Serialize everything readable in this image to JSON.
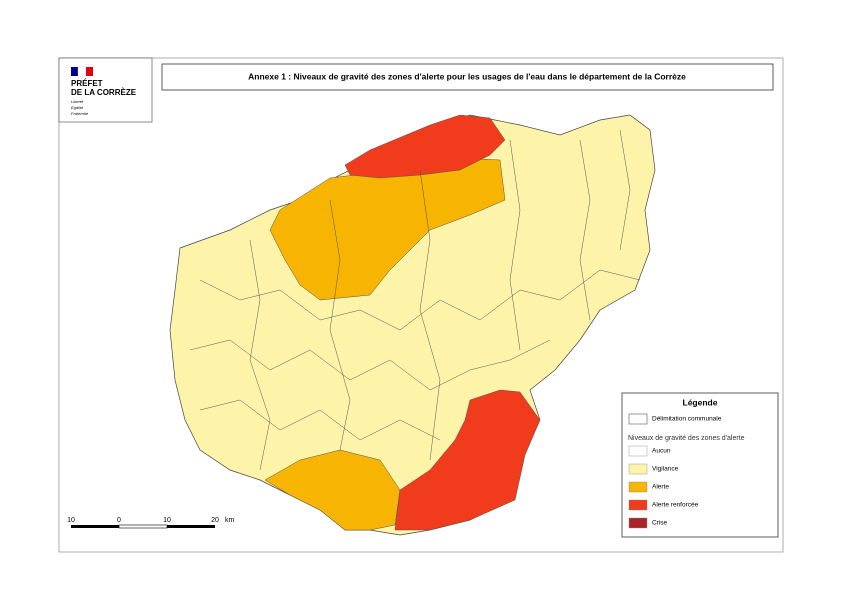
{
  "header": {
    "logo_lines": [
      "PRÉFET",
      "DE LA CORRÈZE"
    ],
    "motto": [
      "Liberté",
      "Égalité",
      "Fraternité"
    ],
    "title": "Annexe 1 : Niveaux de gravité des zones d'alerte pour les usages de l'eau dans le département de la Corrèze"
  },
  "legend": {
    "title": "Légende",
    "boundary": "Délimitation communale",
    "subtitle": "Niveaux de gravité des zones d'alerte",
    "items": [
      {
        "name": "Aucun",
        "color": "#ffffff"
      },
      {
        "name": "Vigilance",
        "color": "#fdf3a9"
      },
      {
        "name": "Alerte",
        "color": "#f7b400"
      },
      {
        "name": "Alerte renforcée",
        "color": "#f03b1c"
      },
      {
        "name": "Crise",
        "color": "#a8262a"
      }
    ]
  },
  "scale_bar": {
    "labels": [
      "10",
      "0",
      "10",
      "20"
    ],
    "unit": "km"
  }
}
